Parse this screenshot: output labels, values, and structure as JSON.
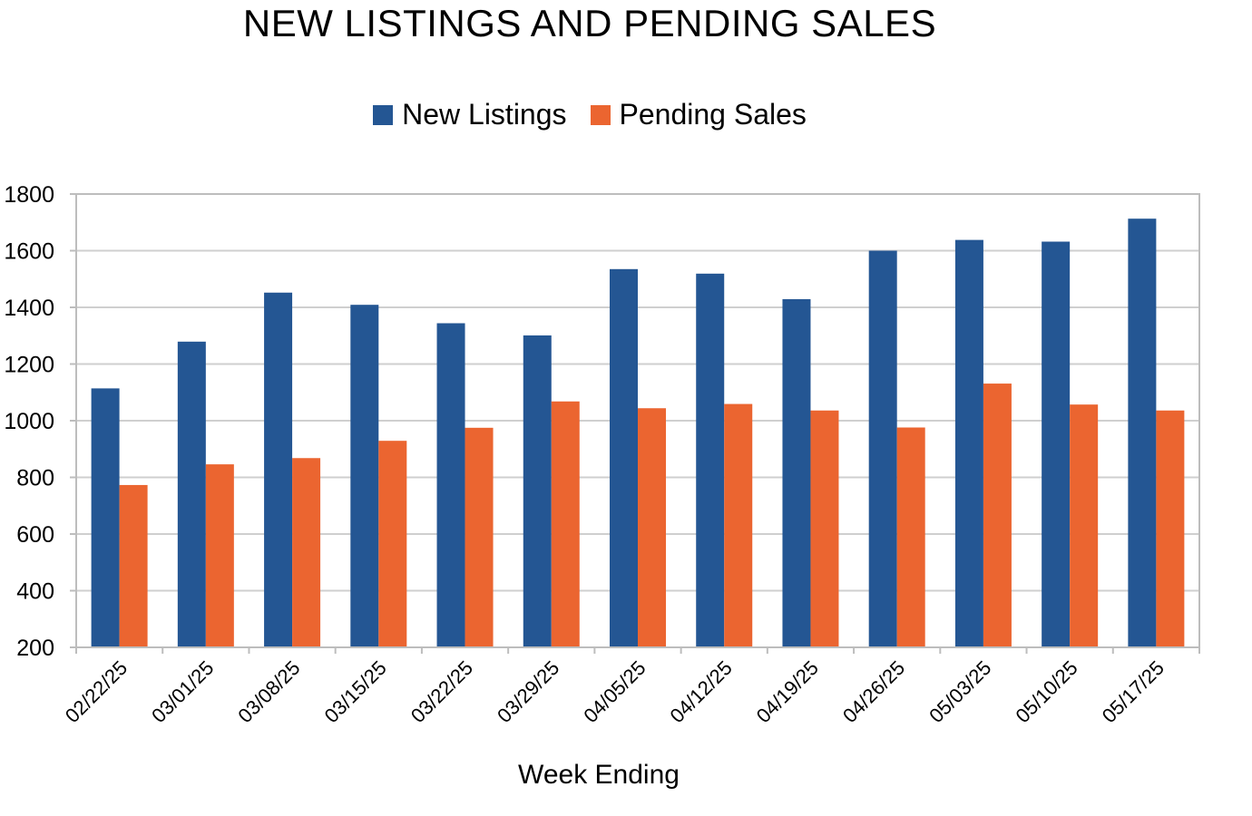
{
  "chart_data": {
    "type": "bar",
    "title": "NEW LISTINGS AND PENDING SALES",
    "xlabel": "Week Ending",
    "ylabel": "",
    "ylim": [
      200,
      1800
    ],
    "yticks": [
      200,
      400,
      600,
      800,
      1000,
      1200,
      1400,
      1600,
      1800
    ],
    "grid": true,
    "legend_position": "top",
    "categories": [
      "02/22/25",
      "03/01/25",
      "03/08/25",
      "03/15/25",
      "03/22/25",
      "03/29/25",
      "04/05/25",
      "04/12/25",
      "04/19/25",
      "04/26/25",
      "05/03/25",
      "05/10/25",
      "05/17/25"
    ],
    "series": [
      {
        "name": "New Listings",
        "color": "#245693",
        "values": [
          1114,
          1279,
          1452,
          1409,
          1344,
          1301,
          1535,
          1519,
          1429,
          1600,
          1638,
          1632,
          1713
        ]
      },
      {
        "name": "Pending Sales",
        "color": "#EB6530",
        "values": [
          773,
          846,
          868,
          929,
          975,
          1068,
          1044,
          1059,
          1036,
          976,
          1131,
          1057,
          1036
        ]
      }
    ]
  }
}
